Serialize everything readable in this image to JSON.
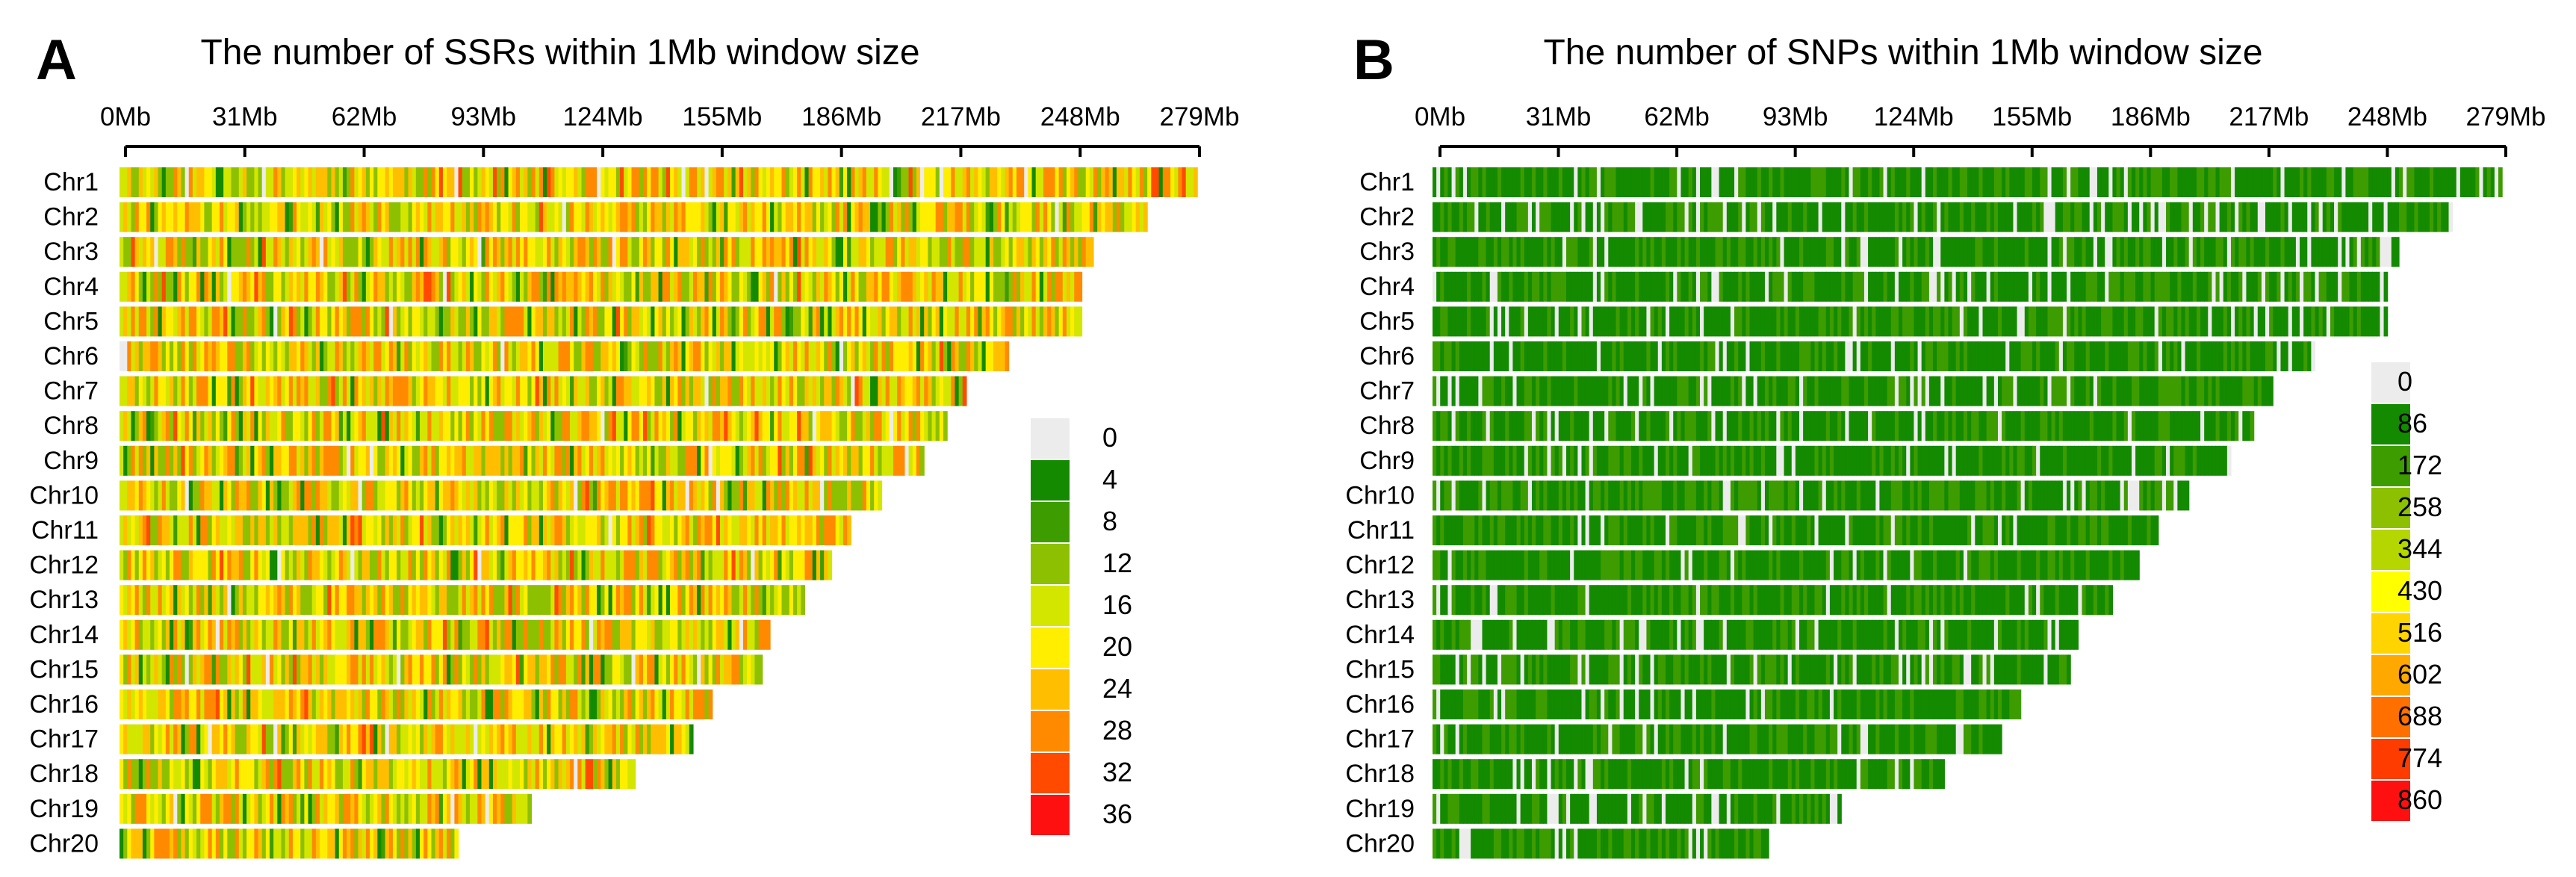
{
  "chart_data": [
    {
      "type": "heatmap",
      "panel_label": "A",
      "title": "The number of SSRs within 1Mb window size",
      "x_unit": "Mb",
      "xlim": [
        0,
        279
      ],
      "x_ticks": [
        "0Mb",
        "31Mb",
        "62Mb",
        "93Mb",
        "124Mb",
        "155Mb",
        "186Mb",
        "217Mb",
        "248Mb",
        "279Mb"
      ],
      "x_tick_values": [
        0,
        31,
        62,
        93,
        124,
        155,
        186,
        217,
        248,
        279
      ],
      "rows": [
        {
          "name": "Chr1",
          "length": 280
        },
        {
          "name": "Chr2",
          "length": 267
        },
        {
          "name": "Chr3",
          "length": 253
        },
        {
          "name": "Chr4",
          "length": 250
        },
        {
          "name": "Chr5",
          "length": 250
        },
        {
          "name": "Chr6",
          "length": 231
        },
        {
          "name": "Chr7",
          "length": 220
        },
        {
          "name": "Chr8",
          "length": 215
        },
        {
          "name": "Chr9",
          "length": 209
        },
        {
          "name": "Chr10",
          "length": 198
        },
        {
          "name": "Chr11",
          "length": 190
        },
        {
          "name": "Chr12",
          "length": 185
        },
        {
          "name": "Chr13",
          "length": 178
        },
        {
          "name": "Chr14",
          "length": 169
        },
        {
          "name": "Chr15",
          "length": 167
        },
        {
          "name": "Chr16",
          "length": 154
        },
        {
          "name": "Chr17",
          "length": 149
        },
        {
          "name": "Chr18",
          "length": 134
        },
        {
          "name": "Chr19",
          "length": 107
        },
        {
          "name": "Chr20",
          "length": 88
        }
      ],
      "legend": {
        "values": [
          "0",
          "4",
          "8",
          "12",
          "16",
          "20",
          "24",
          "28",
          "32",
          "36"
        ],
        "colors": [
          "#ececec",
          "#138a00",
          "#3d9c00",
          "#8cc000",
          "#d2e600",
          "#ffee00",
          "#ffbf00",
          "#ff8a00",
          "#ff4a00",
          "#ff1010"
        ]
      },
      "dominant_color_index": 5,
      "spread": 2.6
    },
    {
      "type": "heatmap",
      "panel_label": "B",
      "title": "The number of SNPs within 1Mb window size",
      "x_unit": "Mb",
      "xlim": [
        0,
        279
      ],
      "x_ticks": [
        "0Mb",
        "31Mb",
        "62Mb",
        "93Mb",
        "124Mb",
        "155Mb",
        "186Mb",
        "217Mb",
        "248Mb",
        "279Mb"
      ],
      "x_tick_values": [
        0,
        31,
        62,
        93,
        124,
        155,
        186,
        217,
        248,
        279
      ],
      "rows": [
        {
          "name": "Chr1",
          "length": 280
        },
        {
          "name": "Chr2",
          "length": 267
        },
        {
          "name": "Chr3",
          "length": 253
        },
        {
          "name": "Chr4",
          "length": 250
        },
        {
          "name": "Chr5",
          "length": 250
        },
        {
          "name": "Chr6",
          "length": 231
        },
        {
          "name": "Chr7",
          "length": 220
        },
        {
          "name": "Chr8",
          "length": 215
        },
        {
          "name": "Chr9",
          "length": 209
        },
        {
          "name": "Chr10",
          "length": 198
        },
        {
          "name": "Chr11",
          "length": 190
        },
        {
          "name": "Chr12",
          "length": 185
        },
        {
          "name": "Chr13",
          "length": 178
        },
        {
          "name": "Chr14",
          "length": 169
        },
        {
          "name": "Chr15",
          "length": 167
        },
        {
          "name": "Chr16",
          "length": 154
        },
        {
          "name": "Chr17",
          "length": 149
        },
        {
          "name": "Chr18",
          "length": 134
        },
        {
          "name": "Chr19",
          "length": 107
        },
        {
          "name": "Chr20",
          "length": 88
        }
      ],
      "legend": {
        "values": [
          "0",
          "86",
          "172",
          "258",
          "344",
          "430",
          "516",
          "602",
          "688",
          "774",
          "860"
        ],
        "colors": [
          "#ececec",
          "#138a00",
          "#3d9c00",
          "#8cc000",
          "#b6d600",
          "#ffff00",
          "#ffd400",
          "#ffa800",
          "#ff7000",
          "#ff3c00",
          "#ff1010"
        ]
      },
      "dominant_color_index": 1,
      "spread": 1.3
    }
  ]
}
